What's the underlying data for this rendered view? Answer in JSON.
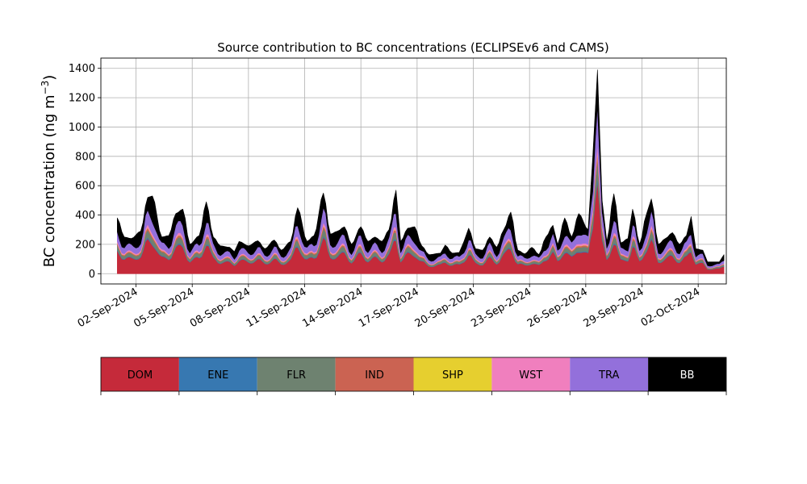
{
  "chart_data": {
    "type": "area",
    "stacked": true,
    "title": "Source contribution to BC concentrations (ECLIPSEv6 and CAMS)",
    "xlabel": "",
    "ylabel_prefix": "BC concentration (ng m",
    "ylabel_exp": "−3",
    "ylabel_suffix": ")",
    "x_start": "2024-09-01T00:00",
    "x_step_hours": 3,
    "xlim": [
      "2024-08-31T03:00",
      "2024-10-03T12:00"
    ],
    "ylim": [
      -70,
      1470
    ],
    "y_ticks": [
      0,
      200,
      400,
      600,
      800,
      1000,
      1200,
      1400
    ],
    "x_ticks": [
      "02-Sep-2024",
      "05-Sep-2024",
      "08-Sep-2024",
      "11-Sep-2024",
      "14-Sep-2024",
      "17-Sep-2024",
      "20-Sep-2024",
      "23-Sep-2024",
      "26-Sep-2024",
      "29-Sep-2024",
      "02-Oct-2024"
    ],
    "x_tick_dates": [
      "2024-09-02",
      "2024-09-05",
      "2024-09-08",
      "2024-09-11",
      "2024-09-14",
      "2024-09-17",
      "2024-09-20",
      "2024-09-23",
      "2024-09-26",
      "2024-09-29",
      "2024-10-02"
    ],
    "grid": true,
    "legend": "bottom colorbar",
    "series": [
      {
        "name": "DOM",
        "color": "#c52a3a",
        "text_color": "#000000"
      },
      {
        "name": "ENE",
        "color": "#3778b1",
        "text_color": "#000000"
      },
      {
        "name": "FLR",
        "color": "#6e8270",
        "text_color": "#000000"
      },
      {
        "name": "IND",
        "color": "#cb6352",
        "text_color": "#000000"
      },
      {
        "name": "SHP",
        "color": "#e6cf2f",
        "text_color": "#000000"
      },
      {
        "name": "WST",
        "color": "#f07fbe",
        "text_color": "#000000"
      },
      {
        "name": "TRA",
        "color": "#9370db",
        "text_color": "#000000"
      },
      {
        "name": "BB",
        "color": "#000000",
        "text_color": "#ffffff"
      }
    ],
    "total_keypoints": [
      [
        "2024-09-01T00:00",
        380
      ],
      [
        "2024-09-01T09:00",
        250
      ],
      [
        "2024-09-01T18:00",
        240
      ],
      [
        "2024-09-02T06:00",
        290
      ],
      [
        "2024-09-02T15:00",
        520
      ],
      [
        "2024-09-02T21:00",
        530
      ],
      [
        "2024-09-03T09:00",
        250
      ],
      [
        "2024-09-03T18:00",
        260
      ],
      [
        "2024-09-04T03:00",
        410
      ],
      [
        "2024-09-04T12:00",
        440
      ],
      [
        "2024-09-04T21:00",
        200
      ],
      [
        "2024-09-05T09:00",
        260
      ],
      [
        "2024-09-05T18:00",
        490
      ],
      [
        "2024-09-06T03:00",
        250
      ],
      [
        "2024-09-06T12:00",
        190
      ],
      [
        "2024-09-07T00:00",
        180
      ],
      [
        "2024-09-07T06:00",
        150
      ],
      [
        "2024-09-07T12:00",
        220
      ],
      [
        "2024-09-08T00:00",
        190
      ],
      [
        "2024-09-08T12:00",
        225
      ],
      [
        "2024-09-08T21:00",
        170
      ],
      [
        "2024-09-09T09:00",
        230
      ],
      [
        "2024-09-09T18:00",
        160
      ],
      [
        "2024-09-10T06:00",
        220
      ],
      [
        "2024-09-10T15:00",
        450
      ],
      [
        "2024-09-11T03:00",
        220
      ],
      [
        "2024-09-11T12:00",
        260
      ],
      [
        "2024-09-12T00:00",
        550
      ],
      [
        "2024-09-12T09:00",
        270
      ],
      [
        "2024-09-12T18:00",
        290
      ],
      [
        "2024-09-13T03:00",
        320
      ],
      [
        "2024-09-13T12:00",
        200
      ],
      [
        "2024-09-14T00:00",
        320
      ],
      [
        "2024-09-14T09:00",
        220
      ],
      [
        "2024-09-14T18:00",
        250
      ],
      [
        "2024-09-15T03:00",
        220
      ],
      [
        "2024-09-15T12:00",
        300
      ],
      [
        "2024-09-15T21:00",
        570
      ],
      [
        "2024-09-16T03:00",
        220
      ],
      [
        "2024-09-16T12:00",
        310
      ],
      [
        "2024-09-16T21:00",
        320
      ],
      [
        "2024-09-17T06:00",
        190
      ],
      [
        "2024-09-17T15:00",
        130
      ],
      [
        "2024-09-18T06:00",
        140
      ],
      [
        "2024-09-18T12:00",
        195
      ],
      [
        "2024-09-18T21:00",
        140
      ],
      [
        "2024-09-19T06:00",
        145
      ],
      [
        "2024-09-19T12:00",
        220
      ],
      [
        "2024-09-19T18:00",
        310
      ],
      [
        "2024-09-20T03:00",
        170
      ],
      [
        "2024-09-20T12:00",
        160
      ],
      [
        "2024-09-20T21:00",
        250
      ],
      [
        "2024-09-21T06:00",
        180
      ],
      [
        "2024-09-21T15:00",
        300
      ],
      [
        "2024-09-22T00:00",
        420
      ],
      [
        "2024-09-22T09:00",
        160
      ],
      [
        "2024-09-22T18:00",
        135
      ],
      [
        "2024-09-23T03:00",
        180
      ],
      [
        "2024-09-23T12:00",
        130
      ],
      [
        "2024-09-23T21:00",
        250
      ],
      [
        "2024-09-24T06:00",
        330
      ],
      [
        "2024-09-24T12:00",
        200
      ],
      [
        "2024-09-24T21:00",
        380
      ],
      [
        "2024-09-25T06:00",
        250
      ],
      [
        "2024-09-25T15:00",
        410
      ],
      [
        "2024-09-26T03:00",
        300
      ],
      [
        "2024-09-26T09:00",
        800
      ],
      [
        "2024-09-26T15:00",
        1390
      ],
      [
        "2024-09-26T21:00",
        500
      ],
      [
        "2024-09-27T03:00",
        220
      ],
      [
        "2024-09-27T12:00",
        545
      ],
      [
        "2024-09-27T21:00",
        210
      ],
      [
        "2024-09-28T06:00",
        240
      ],
      [
        "2024-09-28T12:00",
        440
      ],
      [
        "2024-09-28T21:00",
        200
      ],
      [
        "2024-09-29T06:00",
        410
      ],
      [
        "2024-09-29T12:00",
        510
      ],
      [
        "2024-09-29T21:00",
        200
      ],
      [
        "2024-09-30T06:00",
        240
      ],
      [
        "2024-09-30T15:00",
        280
      ],
      [
        "2024-10-01T00:00",
        200
      ],
      [
        "2024-10-01T09:00",
        260
      ],
      [
        "2024-10-01T15:00",
        390
      ],
      [
        "2024-10-01T21:00",
        170
      ],
      [
        "2024-10-02T06:00",
        160
      ],
      [
        "2024-10-02T12:00",
        80
      ],
      [
        "2024-10-03T03:00",
        80
      ],
      [
        "2024-10-03T09:00",
        130
      ]
    ],
    "dom_share": 0.55,
    "layer_shares_of_nondom": {
      "ENE": 0.05,
      "FLR": 0.25,
      "IND": 0.08,
      "SHP": 0.02,
      "WST": 0.1,
      "TRA": 0.5
    },
    "bb_share_base": 0.25
  }
}
